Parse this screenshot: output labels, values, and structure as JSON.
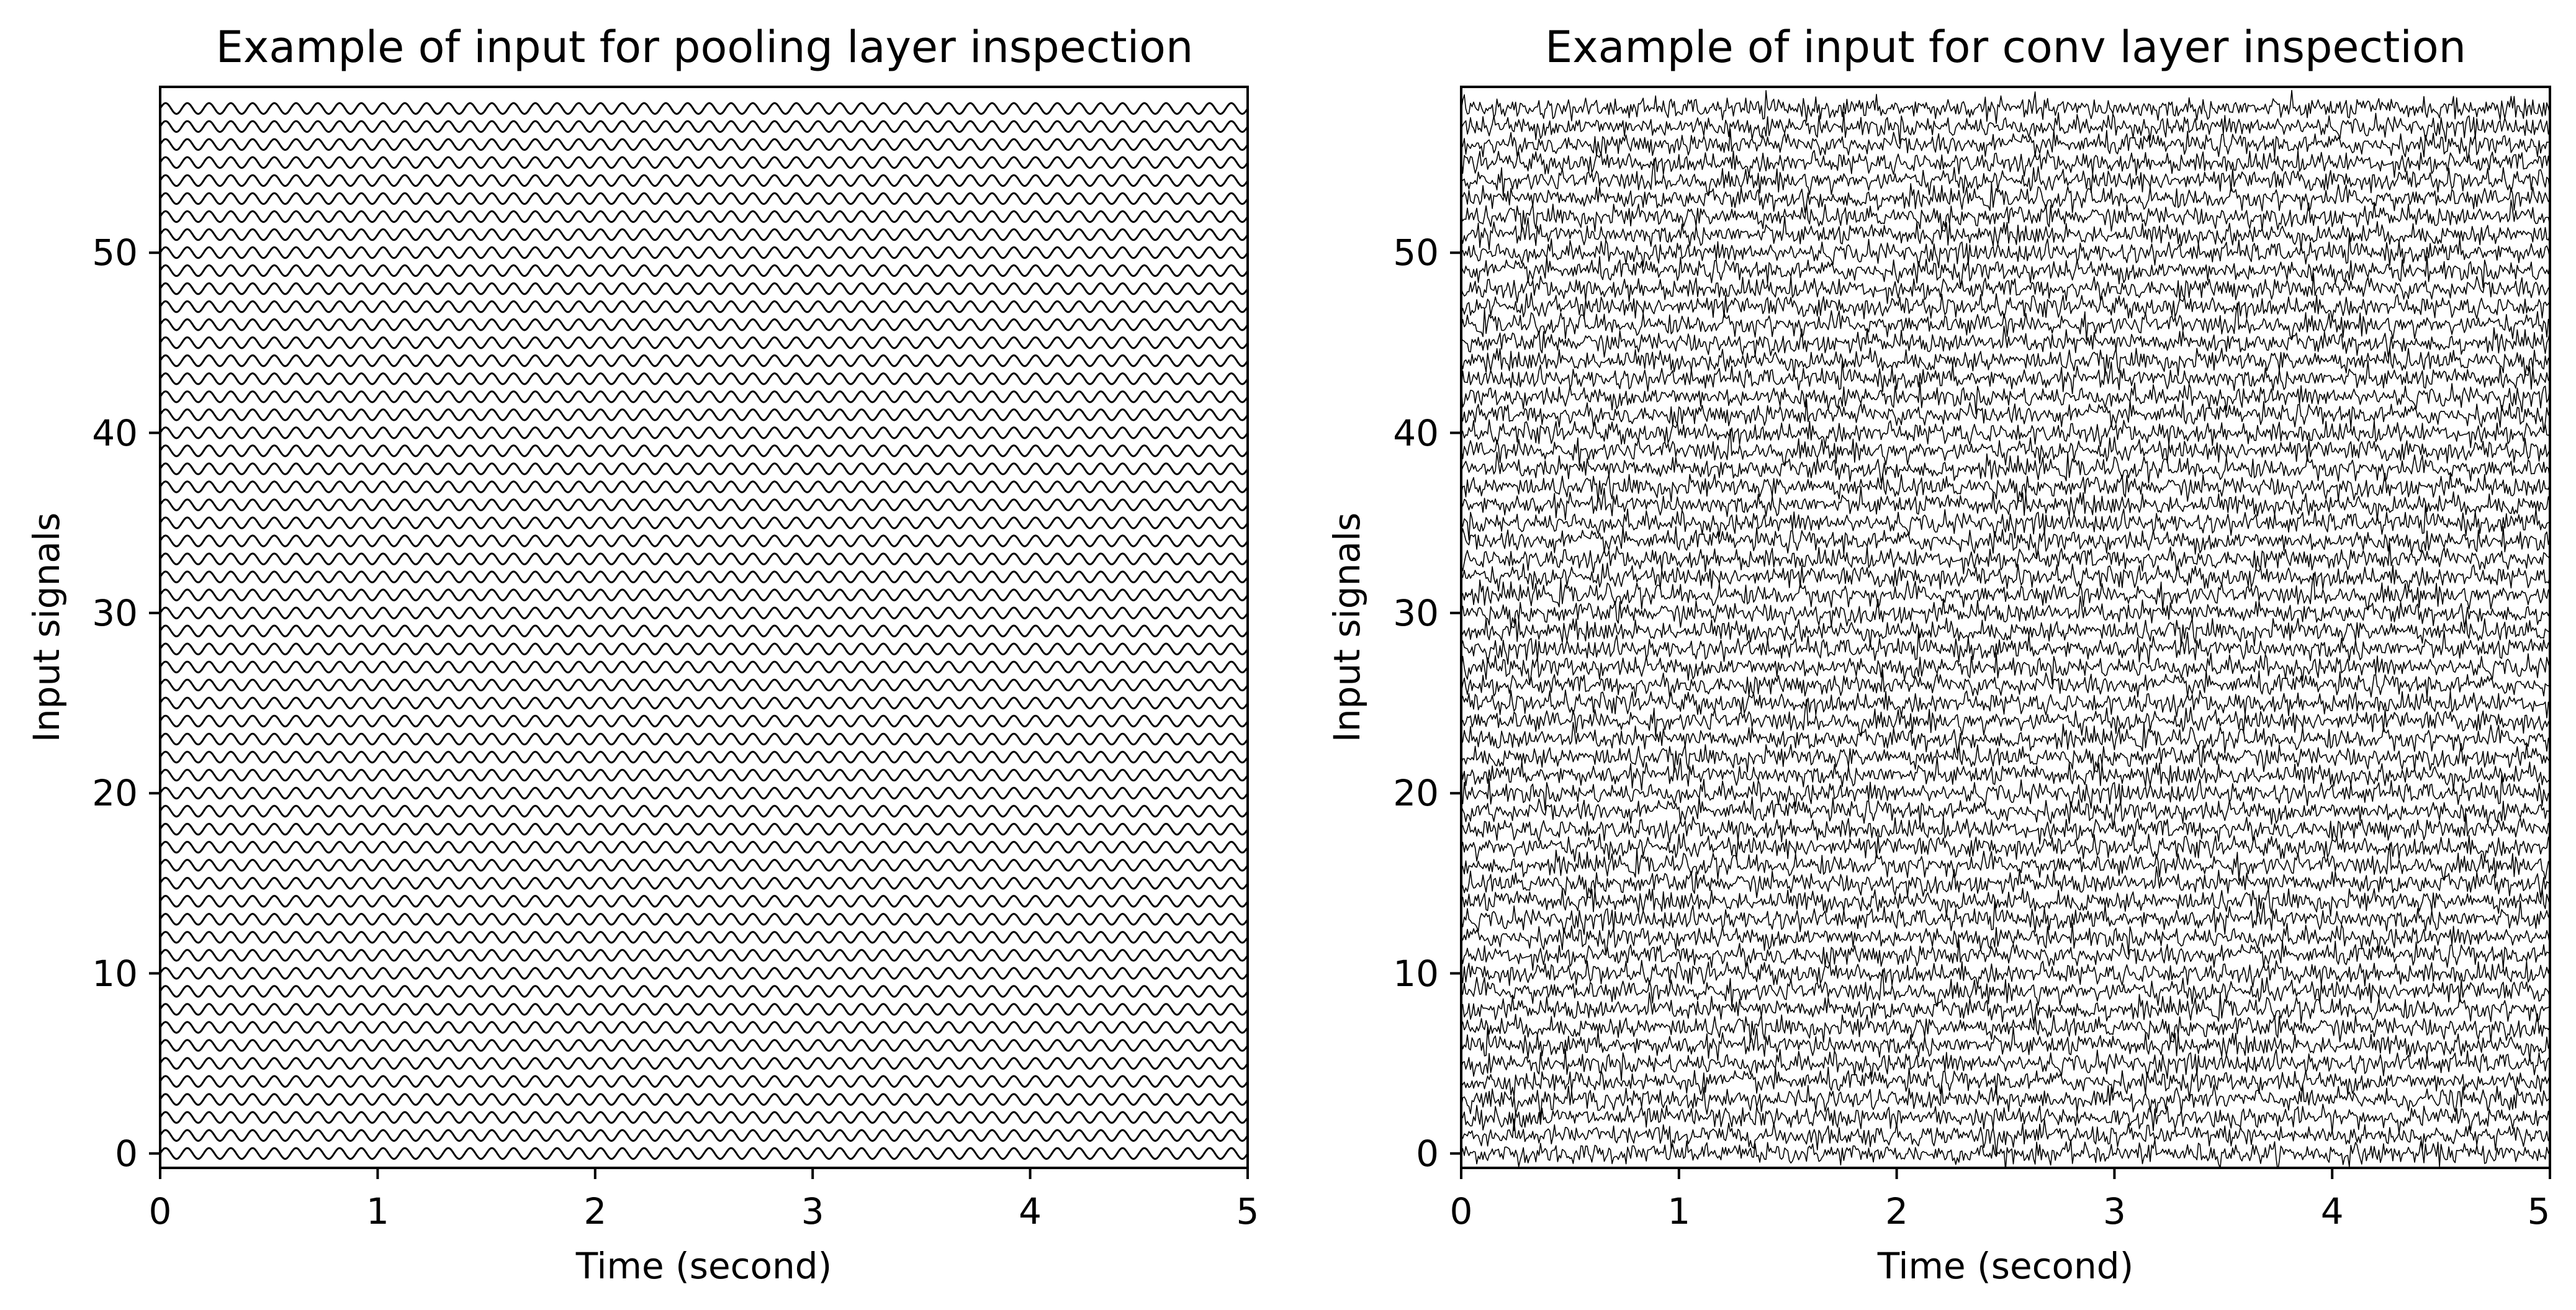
{
  "chart_data": [
    {
      "type": "line",
      "title": "Example of input for pooling layer inspection",
      "xlabel": "Time (second)",
      "ylabel": "Input signals",
      "xlim": [
        0,
        5
      ],
      "ylim": [
        -0.8,
        59.2
      ],
      "xticks": [
        "0",
        "1",
        "2",
        "3",
        "4",
        "5"
      ],
      "yticks": [
        "0",
        "10",
        "20",
        "30",
        "40",
        "50"
      ],
      "grid": false,
      "line_color": "#000000",
      "signal_count": 59,
      "signal_kind": "sine wave, offset vertically by 1 per signal",
      "frequency_hz": 10,
      "amplitude": 0.3
    },
    {
      "type": "line",
      "title": "Example of input for conv layer inspection",
      "xlabel": "Time (second)",
      "ylabel": "Input signals",
      "xlim": [
        0,
        5
      ],
      "ylim": [
        -0.8,
        59.2
      ],
      "xticks": [
        "0",
        "1",
        "2",
        "3",
        "4",
        "5"
      ],
      "yticks": [
        "0",
        "10",
        "20",
        "30",
        "40",
        "50"
      ],
      "grid": false,
      "line_color": "#000000",
      "signal_count": 59,
      "signal_kind": "random noise, offset vertically by 1 per signal"
    }
  ]
}
